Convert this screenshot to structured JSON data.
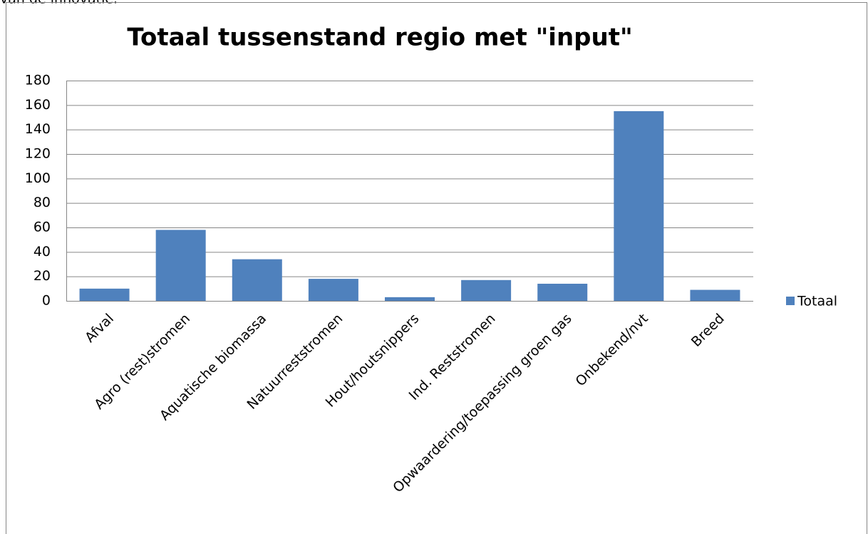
{
  "header_text": "van de innovatie.",
  "chart_data": {
    "type": "bar",
    "title": "Totaal tussenstand regio met \"input\"",
    "categories": [
      "Afval",
      "Agro (rest)stromen",
      "Aquatische biomassa",
      "Natuurreststromen",
      "Hout/houtsnippers",
      "Ind. Reststromen",
      "Opwaardering/toepassing groen gas",
      "Onbekend/nvt",
      "Breed"
    ],
    "series": [
      {
        "name": "Totaal",
        "color": "#4f81bd",
        "values": [
          10,
          58,
          34,
          18,
          3,
          17,
          14,
          155,
          9
        ]
      }
    ],
    "ylim": [
      0,
      180
    ],
    "yticks": [
      0,
      20,
      40,
      60,
      80,
      100,
      120,
      140,
      160,
      180
    ],
    "grid": true,
    "legend": "right"
  }
}
